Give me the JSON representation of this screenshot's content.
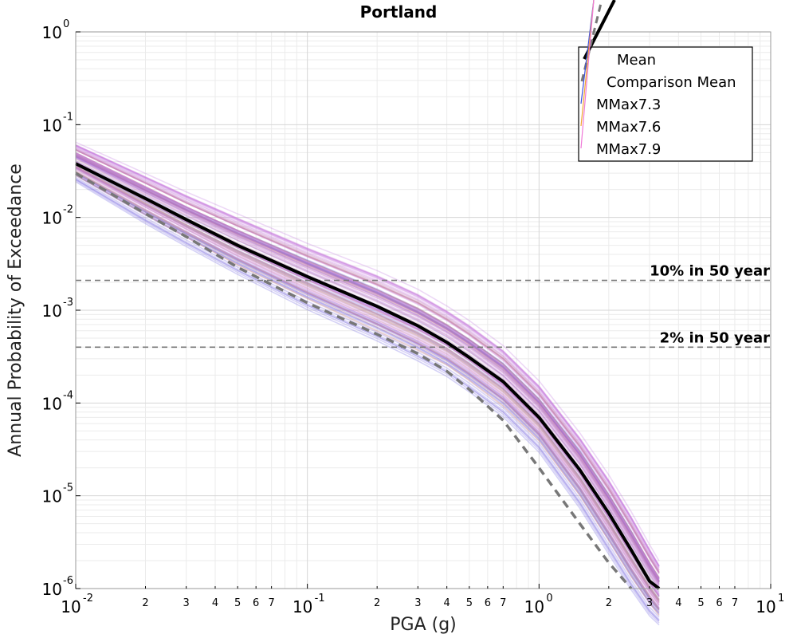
{
  "chart_data": {
    "type": "line",
    "title": "Portland",
    "xlabel": "PGA (g)",
    "ylabel": "Annual Probability of Exceedance",
    "xscale": "log",
    "yscale": "log",
    "xlim": [
      0.01,
      10
    ],
    "ylim": [
      1e-06,
      1
    ],
    "grid": true,
    "legend_position": "top-right",
    "x_major_ticks": [
      {
        "base": "10",
        "exp": "-2",
        "value": 0.01
      },
      {
        "base": "10",
        "exp": "-1",
        "value": 0.1
      },
      {
        "base": "10",
        "exp": "0",
        "value": 1
      },
      {
        "base": "10",
        "exp": "1",
        "value": 10
      }
    ],
    "x_minor_ticks": [
      {
        "label": "2",
        "value": 0.02
      },
      {
        "label": "3",
        "value": 0.03
      },
      {
        "label": "4",
        "value": 0.04
      },
      {
        "label": "5",
        "value": 0.05
      },
      {
        "label": "6",
        "value": 0.06
      },
      {
        "label": "7",
        "value": 0.07
      },
      {
        "label": "2",
        "value": 0.2
      },
      {
        "label": "3",
        "value": 0.3
      },
      {
        "label": "4",
        "value": 0.4
      },
      {
        "label": "5",
        "value": 0.5
      },
      {
        "label": "6",
        "value": 0.6
      },
      {
        "label": "7",
        "value": 0.7
      },
      {
        "label": "2",
        "value": 2
      },
      {
        "label": "3",
        "value": 3
      },
      {
        "label": "4",
        "value": 4
      },
      {
        "label": "5",
        "value": 5
      },
      {
        "label": "6",
        "value": 6
      },
      {
        "label": "7",
        "value": 7
      }
    ],
    "y_major_ticks": [
      {
        "base": "10",
        "exp": "0",
        "value": 1
      },
      {
        "base": "10",
        "exp": "-1",
        "value": 0.1
      },
      {
        "base": "10",
        "exp": "-2",
        "value": 0.01
      },
      {
        "base": "10",
        "exp": "-3",
        "value": 0.001
      },
      {
        "base": "10",
        "exp": "-4",
        "value": 0.0001
      },
      {
        "base": "10",
        "exp": "-5",
        "value": 1e-05
      },
      {
        "base": "10",
        "exp": "-6",
        "value": 1e-06
      }
    ],
    "x": [
      0.01,
      0.02,
      0.03,
      0.05,
      0.1,
      0.2,
      0.3,
      0.4,
      0.5,
      0.7,
      1.0,
      1.5,
      2.0,
      2.5,
      3.0,
      3.3
    ],
    "series": [
      {
        "name": "Mean",
        "color": "#000000",
        "style": "solid",
        "values": [
          0.038,
          0.016,
          0.0095,
          0.005,
          0.0023,
          0.0011,
          0.00068,
          0.00045,
          0.00031,
          0.00017,
          7e-05,
          1.9e-05,
          6.5e-06,
          2.6e-06,
          1.2e-06,
          1e-06
        ]
      },
      {
        "name": "Comparison Mean",
        "color": "#777777",
        "style": "dashed",
        "x": [
          0.01,
          0.02,
          0.03,
          0.05,
          0.1,
          0.2,
          0.3,
          0.4,
          0.5,
          0.7,
          1.0,
          1.5,
          2.0,
          2.5
        ],
        "values": [
          0.03,
          0.011,
          0.0062,
          0.0029,
          0.0012,
          0.00055,
          0.00034,
          0.00022,
          0.00014,
          6.5e-05,
          2e-05,
          5e-06,
          1.9e-06,
          1e-06
        ]
      },
      {
        "name": "MMax7.3",
        "color": "#3b4fe0",
        "style": "ensemble",
        "values_low": [
          0.024,
          0.0085,
          0.0048,
          0.0024,
          0.001,
          0.00046,
          0.00028,
          0.00019,
          0.00013,
          7e-05,
          2.9e-05,
          7.2e-06,
          2.3e-06,
          9.5e-07,
          5e-07,
          4e-07
        ],
        "values_high": [
          0.048,
          0.021,
          0.013,
          0.0073,
          0.0035,
          0.0017,
          0.00105,
          0.0007,
          0.00049,
          0.00027,
          0.000112,
          3.1e-05,
          1.05e-05,
          4.2e-06,
          1.9e-06,
          1.3e-06
        ]
      },
      {
        "name": "MMax7.6",
        "color": "#f0a830",
        "style": "ensemble",
        "values_low": [
          0.028,
          0.0105,
          0.006,
          0.003,
          0.0013,
          0.00058,
          0.00036,
          0.00025,
          0.00017,
          9e-05,
          3.8e-05,
          9.8e-06,
          3.2e-06,
          1.3e-06,
          6.8e-07,
          5e-07
        ],
        "values_high": [
          0.058,
          0.026,
          0.016,
          0.0092,
          0.0044,
          0.0022,
          0.0014,
          0.00092,
          0.00064,
          0.00035,
          0.000145,
          4e-05,
          1.4e-05,
          5.6e-06,
          2.5e-06,
          1.7e-06
        ]
      },
      {
        "name": "MMax7.9",
        "color": "#f07ad8",
        "style": "ensemble",
        "values_low": [
          0.032,
          0.012,
          0.0069,
          0.0035,
          0.0015,
          0.00068,
          0.00042,
          0.00029,
          0.0002,
          0.000105,
          4.4e-05,
          1.2e-05,
          3.9e-06,
          1.6e-06,
          8.3e-07,
          6e-07
        ],
        "values_high": [
          0.065,
          0.03,
          0.019,
          0.011,
          0.0053,
          0.0027,
          0.0017,
          0.00112,
          0.00078,
          0.00042,
          0.000175,
          4.8e-05,
          1.7e-05,
          6.8e-06,
          3e-06,
          2e-06
        ]
      }
    ],
    "reference_lines": [
      {
        "label": "10% in 50 year",
        "value": 0.0021,
        "color": "#777777"
      },
      {
        "label": "2% in 50 year",
        "value": 0.0004,
        "color": "#777777"
      }
    ]
  }
}
